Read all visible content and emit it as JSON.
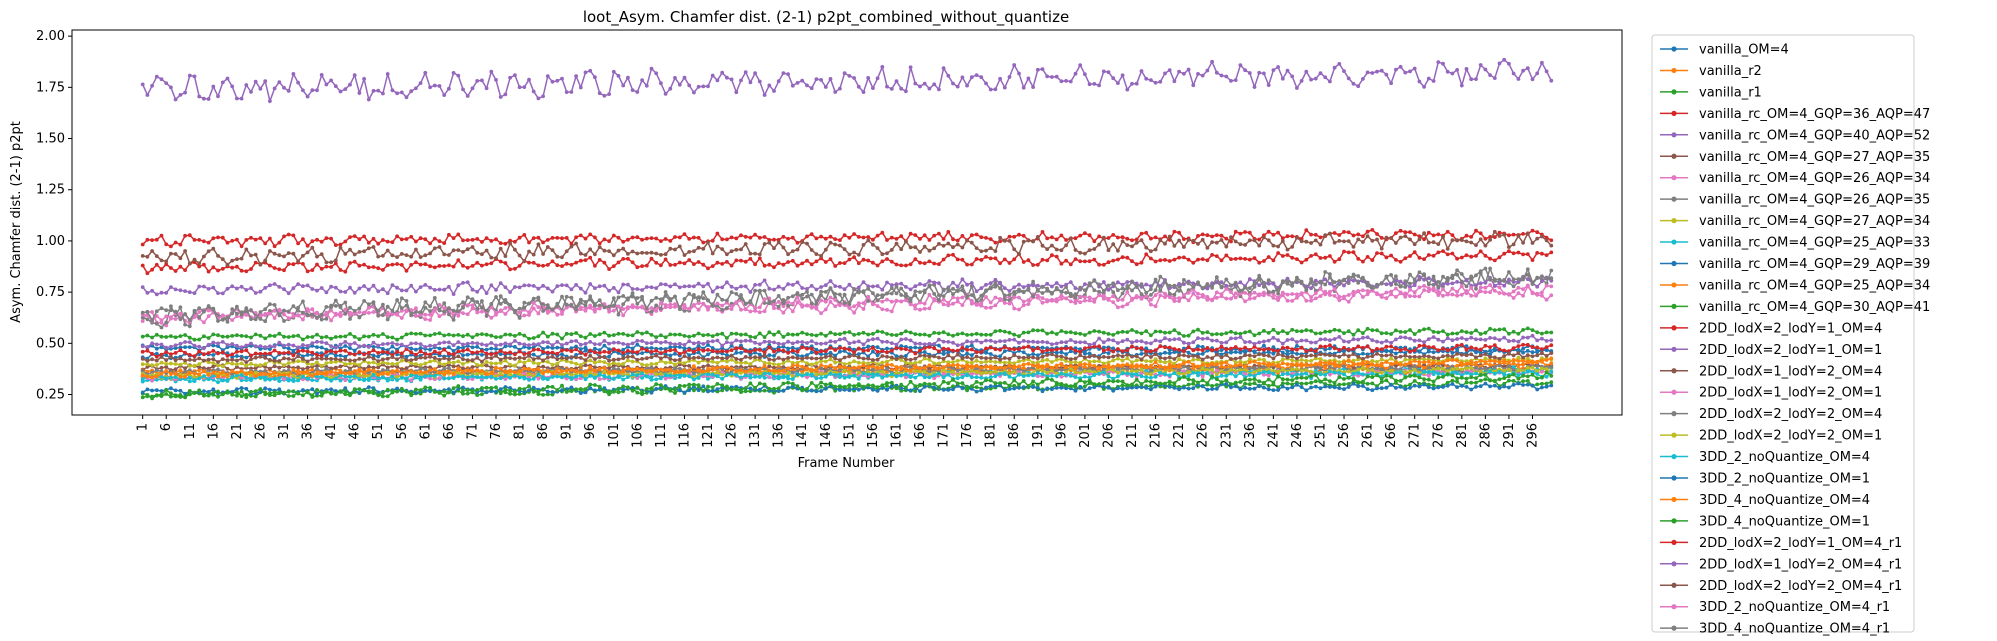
{
  "chart_data": {
    "type": "line",
    "title": "loot_Asym. Chamfer dist. (2-1) p2pt_combined_without_quantize",
    "xlabel": "Frame Number",
    "ylabel": "Asym. Chamfer dist. (2-1) p2pt",
    "xlim": [
      -14,
      315
    ],
    "ylim": [
      0.15,
      2.03
    ],
    "x_range": [
      1,
      300
    ],
    "x_ticks": [
      "1",
      "6",
      "11",
      "16",
      "21",
      "26",
      "31",
      "36",
      "41",
      "46",
      "51",
      "56",
      "61",
      "66",
      "71",
      "76",
      "81",
      "86",
      "91",
      "96",
      "101",
      "106",
      "111",
      "116",
      "121",
      "126",
      "131",
      "136",
      "141",
      "146",
      "151",
      "156",
      "161",
      "166",
      "171",
      "176",
      "181",
      "186",
      "191",
      "196",
      "201",
      "206",
      "211",
      "216",
      "221",
      "226",
      "231",
      "236",
      "241",
      "246",
      "251",
      "256",
      "261",
      "266",
      "271",
      "276",
      "281",
      "286",
      "291",
      "296"
    ],
    "y_ticks": [
      "0.25",
      "0.50",
      "0.75",
      "1.00",
      "1.25",
      "1.50",
      "1.75",
      "2.00"
    ],
    "grid": false,
    "legend_placement": "outside-right",
    "series": [
      {
        "name": "vanilla_OM=4",
        "color": "#1f77b4",
        "start": 0.48,
        "end": 0.47,
        "amp": 0.012,
        "ncp": "#1f77b4"
      },
      {
        "name": "vanilla_r2",
        "color": "#ff7f0e",
        "start": 0.36,
        "end": 0.37,
        "amp": 0.012
      },
      {
        "name": "vanilla_r1",
        "color": "#2ca02c",
        "start": 0.245,
        "end": 0.31,
        "amp": 0.012
      },
      {
        "name": "vanilla_rc_OM=4_GQP=36_AQP=47",
        "color": "#d62728",
        "start": 0.87,
        "end": 0.93,
        "amp": 0.02
      },
      {
        "name": "vanilla_rc_OM=4_GQP=40_AQP=52",
        "color": "#9467bd",
        "start": 1.74,
        "end": 1.82,
        "amp": 0.05
      },
      {
        "name": "vanilla_rc_OM=4_GQP=27_AQP=35",
        "color": "#8c564b",
        "start": 0.38,
        "end": 0.39,
        "amp": 0.01
      },
      {
        "name": "vanilla_rc_OM=4_GQP=26_AQP=34",
        "color": "#e377c2",
        "start": 0.62,
        "end": 0.75,
        "amp": 0.025
      },
      {
        "name": "vanilla_rc_OM=4_GQP=26_AQP=35",
        "color": "#7f7f7f",
        "start": 0.63,
        "end": 0.82,
        "amp": 0.04
      },
      {
        "name": "vanilla_rc_OM=4_GQP=27_AQP=34",
        "color": "#bcbd22",
        "start": 0.4,
        "end": 0.42,
        "amp": 0.01
      },
      {
        "name": "vanilla_rc_OM=4_GQP=25_AQP=33",
        "color": "#17becf",
        "start": 0.32,
        "end": 0.37,
        "amp": 0.012
      },
      {
        "name": "vanilla_rc_OM=4_GQP=29_AQP=39",
        "color": "#1f77b4",
        "start": 0.44,
        "end": 0.46,
        "amp": 0.012
      },
      {
        "name": "vanilla_rc_OM=4_GQP=25_AQP=34",
        "color": "#ff7f0e",
        "start": 0.34,
        "end": 0.4,
        "amp": 0.012
      },
      {
        "name": "vanilla_rc_OM=4_GQP=30_AQP=41",
        "color": "#2ca02c",
        "start": 0.53,
        "end": 0.56,
        "amp": 0.012
      },
      {
        "name": "2DD_lodX=2_lodY=1_OM=4",
        "color": "#d62728",
        "start": 0.45,
        "end": 0.48,
        "amp": 0.012
      },
      {
        "name": "2DD_lodX=2_lodY=1_OM=1",
        "color": "#9467bd",
        "start": 0.76,
        "end": 0.8,
        "amp": 0.02
      },
      {
        "name": "2DD_lodX=1_lodY=2_OM=4",
        "color": "#8c564b",
        "start": 0.42,
        "end": 0.44,
        "amp": 0.01
      },
      {
        "name": "2DD_lodX=1_lodY=2_OM=1",
        "color": "#e377c2",
        "start": 0.33,
        "end": 0.36,
        "amp": 0.012
      },
      {
        "name": "2DD_lodX=2_lodY=2_OM=4",
        "color": "#7f7f7f",
        "start": 0.36,
        "end": 0.38,
        "amp": 0.012
      },
      {
        "name": "2DD_lodX=2_lodY=2_OM=1",
        "color": "#bcbd22",
        "start": 0.34,
        "end": 0.37,
        "amp": 0.012
      },
      {
        "name": "3DD_2_noQuantize_OM=4",
        "color": "#17becf",
        "start": 0.33,
        "end": 0.35,
        "amp": 0.012
      },
      {
        "name": "3DD_2_noQuantize_OM=1",
        "color": "#1f77b4",
        "start": 0.265,
        "end": 0.29,
        "amp": 0.012
      },
      {
        "name": "3DD_4_noQuantize_OM=4",
        "color": "#ff7f0e",
        "start": 0.35,
        "end": 0.41,
        "amp": 0.012
      },
      {
        "name": "3DD_4_noQuantize_OM=1",
        "color": "#2ca02c",
        "start": 0.25,
        "end": 0.34,
        "amp": 0.015
      },
      {
        "name": "2DD_lodX=2_lodY=1_OM=4_r1",
        "color": "#d62728",
        "start": 1.0,
        "end": 1.03,
        "amp": 0.02
      },
      {
        "name": "2DD_lodX=1_lodY=2_OM=4_r1",
        "color": "#9467bd",
        "start": 0.49,
        "end": 0.52,
        "amp": 0.012
      },
      {
        "name": "2DD_lodX=2_lodY=2_OM=4_r1",
        "color": "#8c564b",
        "start": 0.92,
        "end": 1.01,
        "amp": 0.03
      },
      {
        "name": "3DD_2_noQuantize_OM=4_r1",
        "color": "#e377c2",
        "start": 0.63,
        "end": 0.77,
        "amp": 0.02
      },
      {
        "name": "3DD_4_noQuantize_OM=4_r1",
        "color": "#7f7f7f",
        "start": 0.64,
        "end": 0.83,
        "amp": 0.03
      }
    ]
  }
}
